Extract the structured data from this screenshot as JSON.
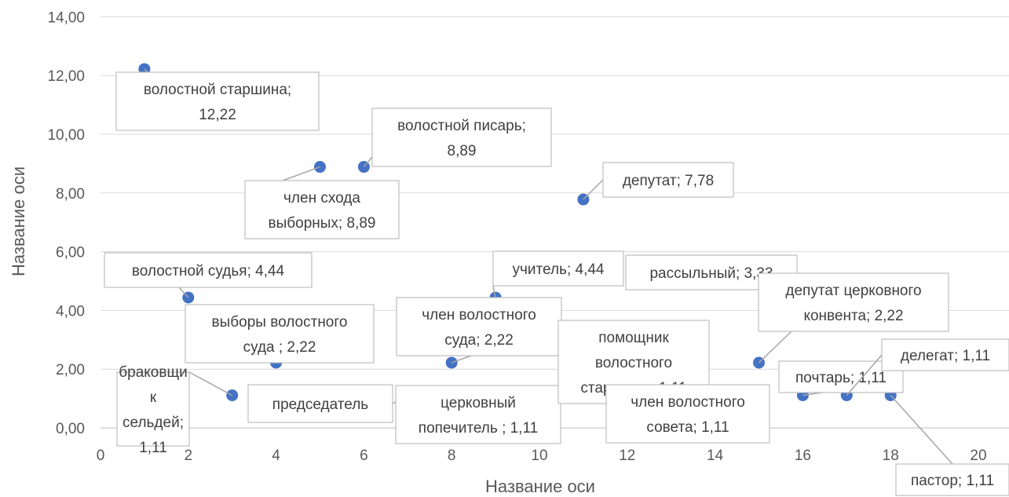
{
  "chart_data": {
    "type": "scatter",
    "xlabel": "Название оси",
    "ylabel": "Название оси",
    "xlim": [
      0,
      20
    ],
    "ylim": [
      0,
      14
    ],
    "x_ticks": [
      "0",
      "2",
      "4",
      "6",
      "8",
      "10",
      "12",
      "14",
      "16",
      "18",
      "20"
    ],
    "y_ticks": [
      "0,00",
      "2,00",
      "4,00",
      "6,00",
      "8,00",
      "10,00",
      "12,00",
      "14,00"
    ],
    "grid": "horizontal",
    "marker_color": "#4472c4",
    "points": [
      {
        "x": 1,
        "y": 12.22,
        "label": [
          "волостной старшина;",
          "12,22"
        ]
      },
      {
        "x": 2,
        "y": 4.44,
        "label": [
          "волостной судья; 4,44"
        ]
      },
      {
        "x": 3,
        "y": 1.11,
        "label": [
          "браковщи",
          "к",
          "сельдей;",
          "1,11"
        ]
      },
      {
        "x": 4,
        "y": 2.22,
        "label": [
          "выборы волостного",
          "суда ; 2,22"
        ]
      },
      {
        "x": 5,
        "y": 8.89,
        "label": [
          "член схода",
          "выборных; 8,89"
        ]
      },
      {
        "x": 6,
        "y": 8.89,
        "label": [
          "волостной писарь;",
          "8,89"
        ]
      },
      {
        "x": 7,
        "y": 1.11,
        "label": [
          "председатель"
        ]
      },
      {
        "x": 8,
        "y": 2.22,
        "label": [
          "член волостного",
          "суда; 2,22"
        ]
      },
      {
        "x": 9,
        "y": 4.44,
        "label": [
          "учитель; 4,44"
        ]
      },
      {
        "x": 10,
        "y": 1.11,
        "label": [
          "церковный",
          "попечитель ; 1,11"
        ]
      },
      {
        "x": 11,
        "y": 7.78,
        "label": [
          "депутат; 7,78"
        ]
      },
      {
        "x": 12,
        "y": 3.33,
        "label": [
          "рассыльный; 3,33"
        ]
      },
      {
        "x": 13,
        "y": 1.11,
        "label": [
          "помощник",
          "волостного",
          "старшины; 1,11"
        ]
      },
      {
        "x": 14,
        "y": 1.11,
        "label": [
          "член волостного",
          "совета; 1,11"
        ]
      },
      {
        "x": 15,
        "y": 2.22,
        "label": [
          "депутат церковного",
          "конвента; 2,22"
        ]
      },
      {
        "x": 16,
        "y": 1.11,
        "label": [
          "почтарь; 1,11"
        ]
      },
      {
        "x": 17,
        "y": 1.11,
        "label": [
          "делегат; 1,11"
        ]
      },
      {
        "x": 18,
        "y": 1.11,
        "label": [
          "пастор; 1,11"
        ]
      }
    ]
  }
}
